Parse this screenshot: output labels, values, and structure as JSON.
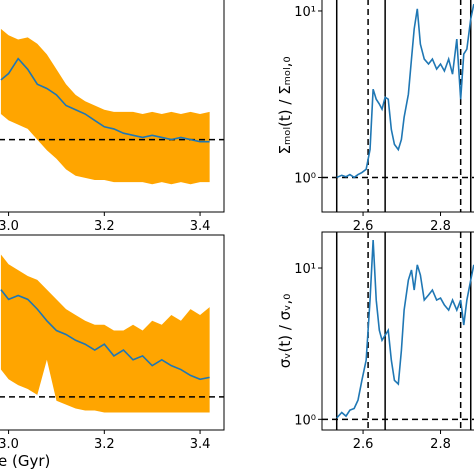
{
  "chart_data": [
    {
      "type": "band-line",
      "x": [
        2.984,
        3.0,
        3.02,
        3.04,
        3.06,
        3.08,
        3.1,
        3.12,
        3.14,
        3.16,
        3.18,
        3.2,
        3.22,
        3.24,
        3.26,
        3.28,
        3.3,
        3.32,
        3.34,
        3.36,
        3.38,
        3.4,
        3.42
      ],
      "series": [
        {
          "color": "#1f77b4",
          "values": [
            6.2,
            6.5,
            7.2,
            6.7,
            6.0,
            5.8,
            5.5,
            5.0,
            4.8,
            4.6,
            4.3,
            4.0,
            3.9,
            3.7,
            3.6,
            3.5,
            3.6,
            3.5,
            3.4,
            3.5,
            3.4,
            3.3,
            3.3
          ]
        }
      ],
      "band": {
        "color": "#ffa500",
        "upper": [
          8.6,
          8.3,
          8.1,
          8.2,
          7.9,
          7.4,
          6.7,
          6.0,
          5.5,
          5.2,
          5.0,
          4.8,
          4.7,
          4.7,
          4.7,
          4.6,
          4.7,
          4.6,
          4.7,
          4.6,
          4.7,
          4.6,
          4.7
        ],
        "lower": [
          4.6,
          4.3,
          4.1,
          3.9,
          3.4,
          2.9,
          2.5,
          2.0,
          1.7,
          1.6,
          1.5,
          1.5,
          1.4,
          1.4,
          1.4,
          1.4,
          1.3,
          1.4,
          1.3,
          1.4,
          1.3,
          1.4,
          1.4
        ]
      },
      "hline": 3.4,
      "xlim": [
        2.98,
        3.45
      ],
      "ylim": [
        0,
        10
      ],
      "xticks": [
        {
          "value": 3.0,
          "label": "3.0"
        },
        3.2,
        3.4
      ]
    },
    {
      "type": "band-line",
      "x": [
        2.984,
        3.0,
        3.02,
        3.04,
        3.06,
        3.08,
        3.1,
        3.12,
        3.14,
        3.16,
        3.18,
        3.2,
        3.22,
        3.24,
        3.26,
        3.28,
        3.3,
        3.32,
        3.34,
        3.36,
        3.38,
        3.4,
        3.42
      ],
      "series": [
        {
          "color": "#1f77b4",
          "values": [
            7.2,
            6.7,
            6.9,
            6.7,
            6.2,
            5.6,
            5.1,
            4.9,
            4.6,
            4.4,
            4.1,
            4.4,
            3.8,
            4.1,
            3.6,
            3.8,
            3.3,
            3.6,
            3.3,
            3.1,
            2.8,
            2.6,
            2.7
          ]
        }
      ],
      "band": {
        "color": "#ffa500",
        "upper": [
          9.0,
          8.5,
          8.2,
          7.9,
          7.7,
          7.2,
          6.7,
          6.2,
          5.9,
          5.6,
          5.4,
          5.4,
          5.1,
          5.1,
          5.4,
          5.1,
          5.6,
          5.4,
          5.9,
          5.6,
          6.2,
          5.9,
          6.3
        ],
        "lower": [
          3.1,
          2.6,
          2.3,
          2.1,
          1.8,
          3.6,
          1.5,
          1.3,
          1.1,
          1.0,
          1.0,
          0.9,
          0.9,
          0.9,
          0.9,
          0.9,
          0.9,
          0.9,
          0.9,
          0.9,
          0.9,
          0.9,
          0.9
        ]
      },
      "hline": 1.7,
      "xlim": [
        2.98,
        3.45
      ],
      "ylim": [
        0,
        10
      ],
      "xticks": [
        {
          "value": 3.0,
          "label": "3.0"
        },
        3.2,
        3.4
      ],
      "x_label": "e (Gyr)"
    },
    {
      "type": "log-line",
      "y_label": "Σₘₒₗ(t) / Σₘₒₗ,₀",
      "x": [
        2.532,
        2.545,
        2.556,
        2.566,
        2.577,
        2.587,
        2.597,
        2.608,
        2.618,
        2.626,
        2.634,
        2.642,
        2.649,
        2.657,
        2.665,
        2.673,
        2.681,
        2.691,
        2.699,
        2.706,
        2.717,
        2.725,
        2.732,
        2.74,
        2.748,
        2.758,
        2.769,
        2.779,
        2.79,
        2.8,
        2.81,
        2.821,
        2.831,
        2.842,
        2.852,
        2.86,
        2.868,
        2.878,
        2.886
      ],
      "series": [
        {
          "color": "#1f77b4",
          "values": [
            1.0,
            1.03,
            1.01,
            1.04,
            1.0,
            1.04,
            1.07,
            1.12,
            1.47,
            3.39,
            2.95,
            2.76,
            2.57,
            3.03,
            2.95,
            1.94,
            1.58,
            1.47,
            1.69,
            2.3,
            3.16,
            5.14,
            7.8,
            10.3,
            6.32,
            5.14,
            4.8,
            5.14,
            4.48,
            4.8,
            4.36,
            5.14,
            4.17,
            6.78,
            2.95,
            5.51,
            5.9,
            8.96,
            11.0
          ]
        }
      ],
      "hline": 1,
      "vlines_solid": [
        2.532,
        2.657,
        2.878
      ],
      "vlines_dashed": [
        2.613,
        2.852
      ],
      "xlim": [
        2.494,
        2.889
      ],
      "ylim": [
        0.62,
        11.8
      ],
      "log_y": true,
      "xticks": [
        2.6,
        2.8
      ],
      "yticks": [
        {
          "value": 1,
          "label": "10⁰"
        },
        {
          "value": 10,
          "label": "10¹"
        }
      ]
    },
    {
      "type": "log-line",
      "y_label": "σᵥ(t) / σᵥ,₀",
      "x": [
        2.532,
        2.545,
        2.556,
        2.566,
        2.577,
        2.587,
        2.597,
        2.608,
        2.618,
        2.626,
        2.634,
        2.642,
        2.649,
        2.657,
        2.665,
        2.673,
        2.681,
        2.691,
        2.699,
        2.706,
        2.717,
        2.725,
        2.732,
        2.74,
        2.748,
        2.758,
        2.769,
        2.779,
        2.79,
        2.8,
        2.81,
        2.821,
        2.831,
        2.842,
        2.852,
        2.86,
        2.868,
        2.878,
        2.886
      ],
      "series": [
        {
          "color": "#1f77b4",
          "values": [
            1.02,
            1.11,
            1.05,
            1.15,
            1.18,
            1.34,
            1.81,
            2.46,
            6.14,
            15.3,
            6.14,
            3.88,
            3.33,
            3.6,
            3.88,
            2.46,
            1.81,
            1.71,
            2.86,
            5.27,
            8.33,
            9.7,
            7.15,
            10.5,
            8.99,
            6.14,
            6.63,
            7.15,
            6.14,
            6.33,
            5.69,
            5.27,
            6.14,
            5.27,
            6.14,
            4.2,
            6.14,
            8.33,
            10.5
          ]
        }
      ],
      "hline": 1,
      "vlines_solid": [
        2.532,
        2.657,
        2.878
      ],
      "vlines_dashed": [
        2.613,
        2.852
      ],
      "xlim": [
        2.494,
        2.889
      ],
      "ylim": [
        0.85,
        17.3
      ],
      "log_y": true,
      "xticks": [
        2.6,
        2.8
      ],
      "yticks": [
        {
          "value": 1,
          "label": "10⁰"
        },
        {
          "value": 10,
          "label": "10¹"
        }
      ]
    }
  ]
}
